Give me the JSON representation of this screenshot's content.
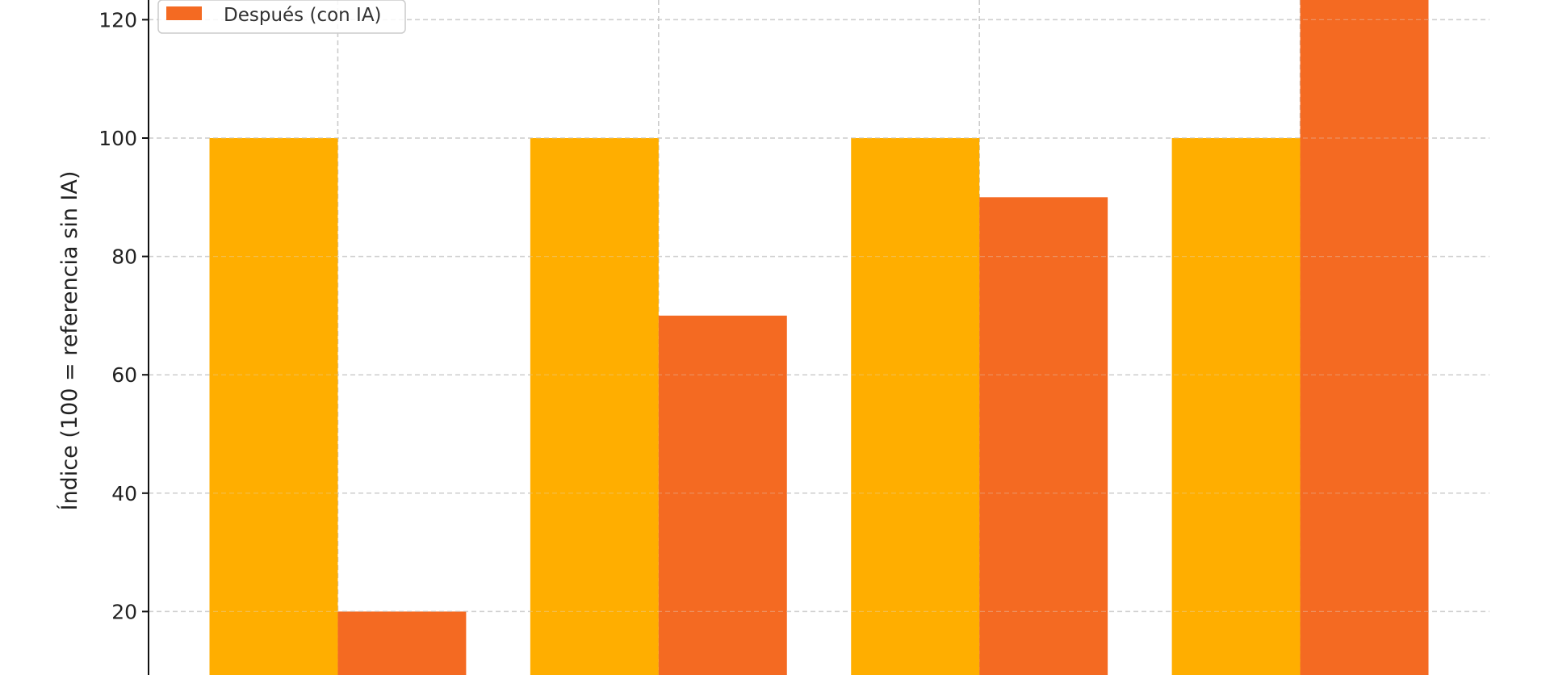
{
  "chart_data": {
    "type": "bar",
    "title": "",
    "xlabel": "",
    "ylabel": "Índice (100 = referencia sin IA)",
    "categories": [
      "",
      "",
      "",
      ""
    ],
    "series": [
      {
        "name": "",
        "color": "#FFAE00",
        "values": [
          100,
          100,
          100,
          100
        ]
      },
      {
        "name": "Después (con IA)",
        "color": "#F46A22",
        "values": [
          20,
          70,
          90,
          130
        ]
      }
    ],
    "yticks": [
      20,
      40,
      60,
      80,
      100,
      120
    ],
    "ylim_visible": [
      9,
      123
    ],
    "grid": true,
    "grid_style": "dashed",
    "legend_placement": "top-left"
  }
}
